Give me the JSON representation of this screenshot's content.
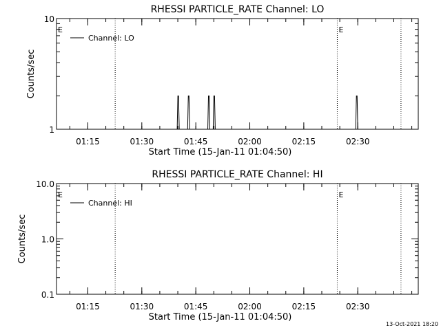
{
  "footer": {
    "timestamp": "13-Oct-2021 18:20"
  },
  "chart_data": [
    {
      "type": "line",
      "title": "RHESSI PARTICLE_RATE Channel: LO",
      "xlabel": "Start Time (15-Jan-11 01:04:50)",
      "ylabel": "Counts/sec",
      "y_scale": "log",
      "ylim": [
        1,
        10
      ],
      "y_ticks": [
        {
          "value": 1,
          "label": "1"
        },
        {
          "value": 10,
          "label": "10"
        }
      ],
      "x_range_minutes": [
        1.5,
        102
      ],
      "x_ticks": [
        {
          "minute": 10.2,
          "label": "01:15"
        },
        {
          "minute": 25.2,
          "label": "01:30"
        },
        {
          "minute": 40.2,
          "label": "01:45"
        },
        {
          "minute": 55.2,
          "label": "02:00"
        },
        {
          "minute": 70.2,
          "label": "02:15"
        },
        {
          "minute": 85.2,
          "label": "02:30"
        }
      ],
      "vlines_minutes": [
        17.8,
        79.5,
        97.2
      ],
      "e_flags": [
        {
          "minute": 1.5,
          "label": "E"
        },
        {
          "minute": 79.5,
          "label": "E"
        }
      ],
      "legend": {
        "label": "Channel: LO",
        "position": "top-left"
      },
      "spikes": [
        {
          "minute": 35.6,
          "value": 2
        },
        {
          "minute": 38.5,
          "value": 2
        },
        {
          "minute": 44.1,
          "value": 2
        },
        {
          "minute": 45.6,
          "value": 2
        },
        {
          "minute": 85.2,
          "value": 2
        }
      ]
    },
    {
      "type": "line",
      "title": "RHESSI PARTICLE_RATE Channel: HI",
      "xlabel": "Start Time (15-Jan-11 01:04:50)",
      "ylabel": "Counts/sec",
      "y_scale": "log",
      "ylim": [
        0.1,
        10
      ],
      "y_ticks": [
        {
          "value": 0.1,
          "label": "0.1"
        },
        {
          "value": 1,
          "label": "1.0"
        },
        {
          "value": 10,
          "label": "10.0"
        }
      ],
      "x_range_minutes": [
        1.5,
        102
      ],
      "x_ticks": [
        {
          "minute": 10.2,
          "label": "01:15"
        },
        {
          "minute": 25.2,
          "label": "01:30"
        },
        {
          "minute": 40.2,
          "label": "01:45"
        },
        {
          "minute": 55.2,
          "label": "02:00"
        },
        {
          "minute": 70.2,
          "label": "02:15"
        },
        {
          "minute": 85.2,
          "label": "02:30"
        }
      ],
      "vlines_minutes": [
        17.8,
        79.5,
        97.2
      ],
      "e_flags": [
        {
          "minute": 1.5,
          "label": "E"
        },
        {
          "minute": 79.5,
          "label": "E"
        }
      ],
      "legend": {
        "label": "Channel: HI",
        "position": "top-left"
      },
      "spikes": []
    }
  ]
}
